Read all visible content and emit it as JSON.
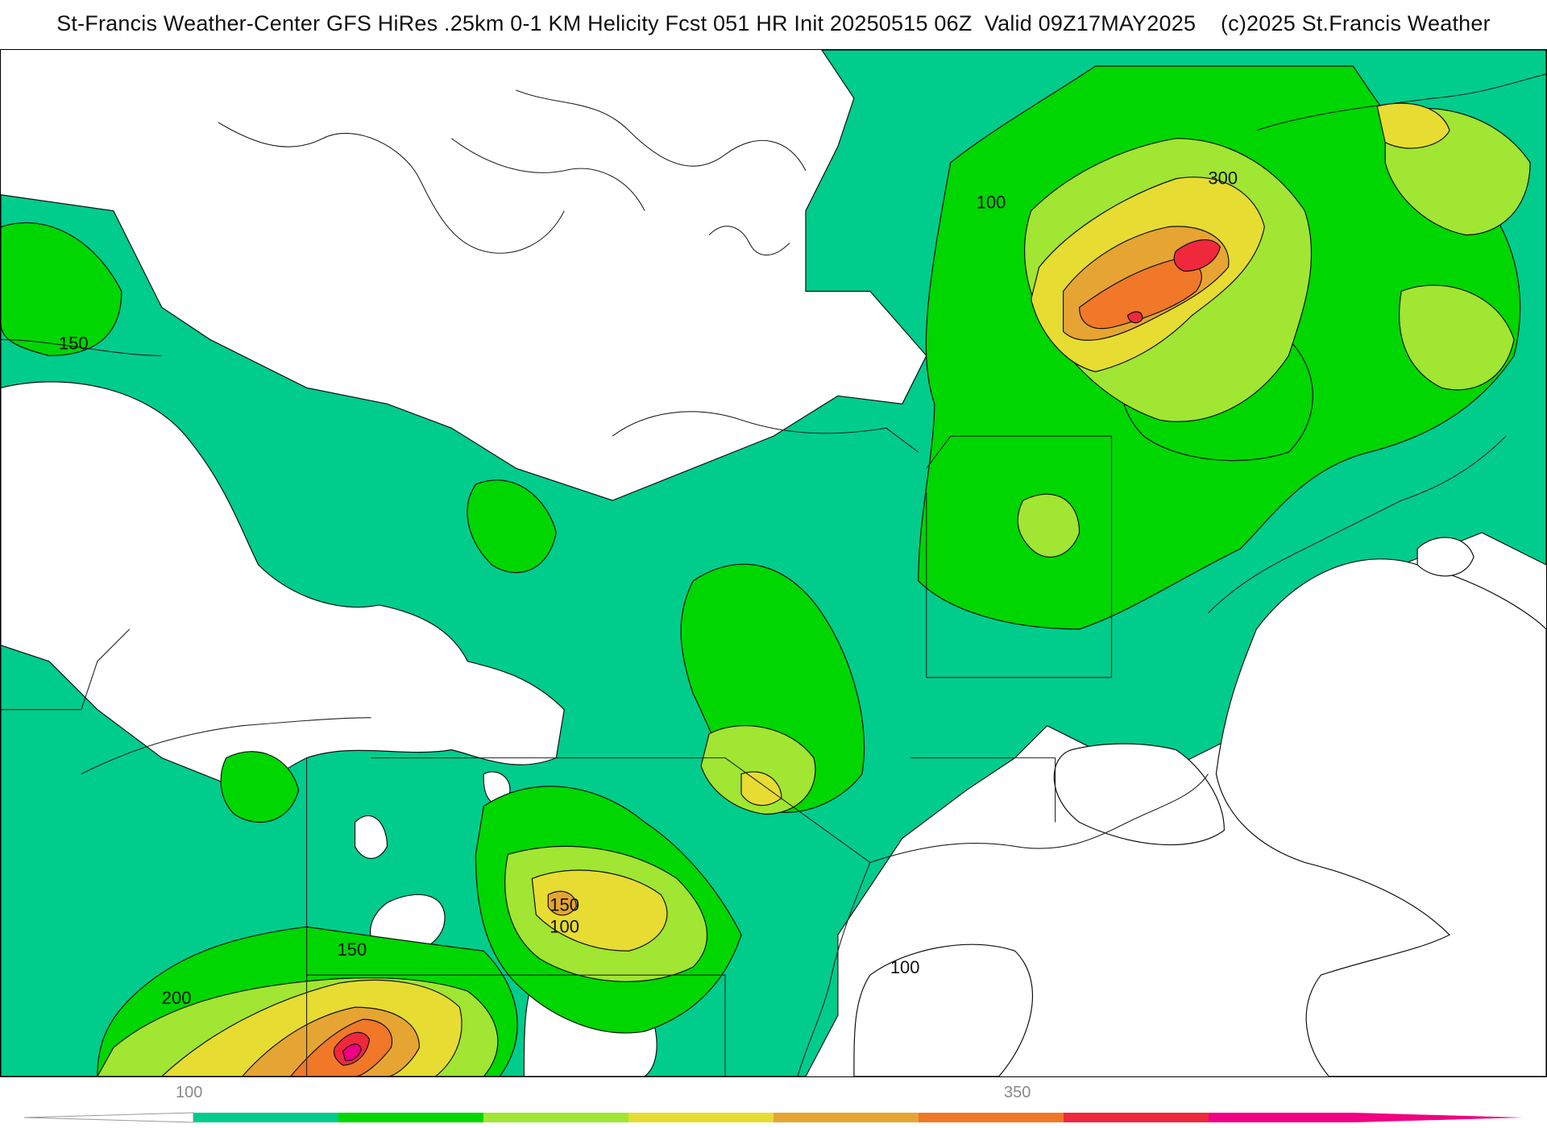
{
  "header": {
    "title": "St-Francis Weather-Center GFS HiRes .25km 0-1 KM Helicity Fcst 051 HR Init 20250515 06Z  Valid 09Z17MAY2025    (c)2025 St.Francis Weather"
  },
  "map": {
    "product": "0-1 KM Helicity",
    "contour_labels": [
      "100",
      "150",
      "200",
      "300",
      "150",
      "100",
      "150",
      "100"
    ]
  },
  "legend": {
    "labels": [
      "100",
      "350"
    ],
    "colors": [
      "#00cc8c",
      "#00d600",
      "#a0e632",
      "#e6dc32",
      "#e6a532",
      "#f07828",
      "#f0283c",
      "#f00082"
    ]
  }
}
